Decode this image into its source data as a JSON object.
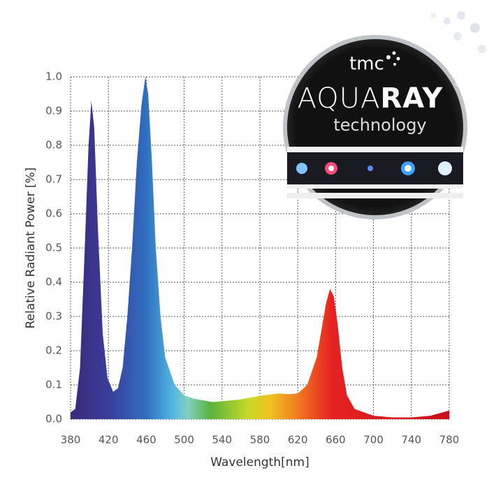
{
  "chart_data": {
    "type": "area",
    "x_label": "Wavelength[nm]",
    "y_label": "Relative Radiant  Power [%]",
    "x": [
      380,
      385,
      390,
      395,
      399,
      402,
      405,
      409,
      414,
      419,
      425,
      430,
      435,
      440,
      445,
      450,
      455,
      459,
      462,
      466,
      470,
      475,
      480,
      490,
      500,
      510,
      520,
      530,
      540,
      560,
      580,
      600,
      610,
      620,
      630,
      640,
      645,
      650,
      654,
      658,
      662,
      667,
      672,
      680,
      700,
      720,
      740,
      760,
      780
    ],
    "values": [
      0.02,
      0.03,
      0.15,
      0.5,
      0.8,
      0.93,
      0.85,
      0.55,
      0.25,
      0.12,
      0.08,
      0.09,
      0.15,
      0.3,
      0.5,
      0.75,
      0.92,
      1.0,
      0.95,
      0.75,
      0.5,
      0.3,
      0.18,
      0.1,
      0.07,
      0.06,
      0.055,
      0.05,
      0.052,
      0.058,
      0.068,
      0.075,
      0.073,
      0.075,
      0.1,
      0.18,
      0.26,
      0.34,
      0.38,
      0.36,
      0.28,
      0.15,
      0.07,
      0.03,
      0.01,
      0.005,
      0.005,
      0.01,
      0.025
    ],
    "xlim": [
      380,
      780
    ],
    "xticks": [
      380,
      420,
      460,
      500,
      540,
      580,
      620,
      660,
      700,
      740,
      780
    ],
    "ylim": [
      0,
      1
    ],
    "yticks": [
      {
        "value": 0,
        "label": "0.0"
      },
      0.1,
      0.2,
      0.3,
      0.4,
      0.5,
      0.6,
      0.7,
      0.8,
      0.9,
      {
        "value": 1,
        "label": "1.0"
      }
    ],
    "grid": true
  },
  "logo": {
    "brand": "tmc",
    "name_light": "AQUA",
    "name_bold": "RAY",
    "registered": "®",
    "tagline": "technology"
  }
}
